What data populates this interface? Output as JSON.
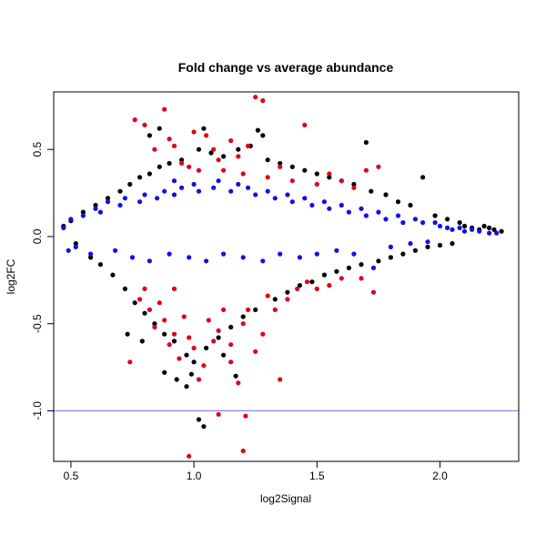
{
  "chart_data": {
    "type": "scatter",
    "title": "Fold change vs average abundance",
    "xlabel": "log2Signal",
    "ylabel": "log2FC",
    "xlim": [
      0.43,
      2.32
    ],
    "ylim": [
      -1.29,
      0.83
    ],
    "xticks": [
      0.5,
      1.0,
      1.5,
      2.0
    ],
    "xtick_labels": [
      "0.5",
      "1.0",
      "1.5",
      "2.0"
    ],
    "yticks": [
      -1.0,
      -0.5,
      0.0,
      0.5
    ],
    "ytick_labels": [
      "-1.0",
      "-0.5",
      "0.0",
      "0.5"
    ],
    "grid": false,
    "colors": {
      "black": "#000000",
      "red": "#e0001b",
      "blue": "#1010e8",
      "hline": "#8080e8"
    },
    "hline": {
      "y": -1.0
    },
    "series": [
      {
        "color": "black",
        "points": [
          [
            0.47,
            0.06
          ],
          [
            0.5,
            0.09
          ],
          [
            0.52,
            -0.04
          ],
          [
            0.55,
            0.14
          ],
          [
            0.58,
            -0.12
          ],
          [
            0.6,
            0.18
          ],
          [
            0.62,
            -0.16
          ],
          [
            0.65,
            0.22
          ],
          [
            0.67,
            -0.22
          ],
          [
            0.7,
            0.26
          ],
          [
            0.72,
            -0.3
          ],
          [
            0.74,
            0.3
          ],
          [
            0.76,
            -0.38
          ],
          [
            0.78,
            0.34
          ],
          [
            0.8,
            -0.44
          ],
          [
            0.82,
            0.36
          ],
          [
            0.84,
            -0.5
          ],
          [
            0.86,
            0.4
          ],
          [
            0.88,
            -0.56
          ],
          [
            0.9,
            0.42
          ],
          [
            0.92,
            -0.6
          ],
          [
            0.95,
            0.44
          ],
          [
            0.97,
            -0.68
          ],
          [
            0.99,
            -0.79
          ],
          [
            1.0,
            -0.72
          ],
          [
            1.02,
            0.5
          ],
          [
            1.04,
            0.62
          ],
          [
            1.05,
            -0.64
          ],
          [
            1.07,
            0.48
          ],
          [
            1.1,
            -0.58
          ],
          [
            1.12,
            0.46
          ],
          [
            1.15,
            -0.52
          ],
          [
            1.18,
            0.5
          ],
          [
            1.2,
            -0.46
          ],
          [
            1.23,
            0.52
          ],
          [
            1.25,
            -0.42
          ],
          [
            1.28,
            0.58
          ],
          [
            1.3,
            0.44
          ],
          [
            1.33,
            -0.36
          ],
          [
            1.35,
            0.42
          ],
          [
            1.38,
            -0.32
          ],
          [
            1.4,
            0.4
          ],
          [
            1.43,
            -0.28
          ],
          [
            1.45,
            0.38
          ],
          [
            1.48,
            -0.26
          ],
          [
            1.5,
            0.36
          ],
          [
            1.53,
            -0.22
          ],
          [
            1.55,
            0.34
          ],
          [
            1.58,
            -0.2
          ],
          [
            1.6,
            0.32
          ],
          [
            1.63,
            -0.18
          ],
          [
            1.65,
            0.3
          ],
          [
            1.68,
            -0.16
          ],
          [
            1.7,
            0.54
          ],
          [
            1.72,
            0.26
          ],
          [
            1.75,
            -0.14
          ],
          [
            1.78,
            0.24
          ],
          [
            1.8,
            -0.12
          ],
          [
            1.83,
            0.2
          ],
          [
            1.85,
            -0.1
          ],
          [
            1.88,
            0.18
          ],
          [
            1.9,
            -0.08
          ],
          [
            1.93,
            0.34
          ],
          [
            1.95,
            -0.06
          ],
          [
            1.98,
            0.12
          ],
          [
            2.0,
            -0.05
          ],
          [
            2.03,
            0.1
          ],
          [
            2.05,
            -0.04
          ],
          [
            2.08,
            0.08
          ],
          [
            2.1,
            0.06
          ],
          [
            2.13,
            0.05
          ],
          [
            2.16,
            0.04
          ],
          [
            2.18,
            0.06
          ],
          [
            2.2,
            0.05
          ],
          [
            2.22,
            0.04
          ],
          [
            2.25,
            0.03
          ],
          [
            0.93,
            -0.82
          ],
          [
            0.97,
            -0.86
          ],
          [
            1.02,
            -1.05
          ],
          [
            1.04,
            -1.09
          ],
          [
            0.82,
            0.58
          ],
          [
            0.86,
            0.62
          ],
          [
            1.26,
            0.61
          ],
          [
            1.17,
            -0.8
          ],
          [
            0.88,
            -0.78
          ],
          [
            0.79,
            -0.6
          ],
          [
            0.73,
            -0.56
          ],
          [
            1.12,
            -0.68
          ]
        ]
      },
      {
        "color": "red",
        "points": [
          [
            0.76,
            0.67
          ],
          [
            0.8,
            0.64
          ],
          [
            0.84,
            0.5
          ],
          [
            0.88,
            0.73
          ],
          [
            0.9,
            0.56
          ],
          [
            0.92,
            0.52
          ],
          [
            0.95,
            0.42
          ],
          [
            0.98,
            0.4
          ],
          [
            1.0,
            0.6
          ],
          [
            1.02,
            0.38
          ],
          [
            1.05,
            0.58
          ],
          [
            1.08,
            0.5
          ],
          [
            1.1,
            0.44
          ],
          [
            1.12,
            0.38
          ],
          [
            1.15,
            0.55
          ],
          [
            1.18,
            0.46
          ],
          [
            1.2,
            0.36
          ],
          [
            1.22,
            0.52
          ],
          [
            1.25,
            0.8
          ],
          [
            1.28,
            0.78
          ],
          [
            1.3,
            0.34
          ],
          [
            1.35,
            0.4
          ],
          [
            1.4,
            0.32
          ],
          [
            1.45,
            0.64
          ],
          [
            1.5,
            0.3
          ],
          [
            1.55,
            0.36
          ],
          [
            1.6,
            0.32
          ],
          [
            1.65,
            0.28
          ],
          [
            1.7,
            0.38
          ],
          [
            1.75,
            0.4
          ],
          [
            0.78,
            -0.36
          ],
          [
            0.8,
            -0.3
          ],
          [
            0.82,
            -0.42
          ],
          [
            0.84,
            -0.52
          ],
          [
            0.86,
            -0.38
          ],
          [
            0.88,
            -0.48
          ],
          [
            0.9,
            -0.62
          ],
          [
            0.92,
            -0.56
          ],
          [
            0.94,
            -0.7
          ],
          [
            0.96,
            -0.46
          ],
          [
            0.98,
            -0.58
          ],
          [
            1.0,
            -0.64
          ],
          [
            1.02,
            -0.82
          ],
          [
            1.04,
            -0.74
          ],
          [
            1.06,
            -0.48
          ],
          [
            1.08,
            -0.6
          ],
          [
            1.1,
            -0.54
          ],
          [
            1.12,
            -0.42
          ],
          [
            1.15,
            -0.62
          ],
          [
            1.18,
            -0.84
          ],
          [
            1.2,
            -0.5
          ],
          [
            1.22,
            -0.42
          ],
          [
            1.25,
            -0.66
          ],
          [
            1.28,
            -0.56
          ],
          [
            1.3,
            -0.34
          ],
          [
            1.33,
            -0.42
          ],
          [
            1.35,
            -0.82
          ],
          [
            1.38,
            -0.36
          ],
          [
            1.42,
            -0.3
          ],
          [
            1.46,
            -0.26
          ],
          [
            1.5,
            -0.3
          ],
          [
            1.55,
            -0.28
          ],
          [
            1.6,
            -0.24
          ],
          [
            1.68,
            -0.24
          ],
          [
            1.73,
            -0.32
          ],
          [
            0.74,
            -0.72
          ],
          [
            0.98,
            -1.26
          ],
          [
            1.2,
            -1.23
          ],
          [
            1.21,
            -1.03
          ],
          [
            1.1,
            -1.02
          ],
          [
            1.15,
            -0.72
          ],
          [
            0.92,
            -0.3
          ]
        ]
      },
      {
        "color": "blue",
        "points": [
          [
            0.47,
            0.05
          ],
          [
            0.5,
            0.1
          ],
          [
            0.52,
            -0.06
          ],
          [
            0.55,
            0.12
          ],
          [
            0.58,
            -0.1
          ],
          [
            0.6,
            0.16
          ],
          [
            0.62,
            0.14
          ],
          [
            0.65,
            0.2
          ],
          [
            0.68,
            -0.08
          ],
          [
            0.7,
            0.18
          ],
          [
            0.72,
            0.22
          ],
          [
            0.75,
            -0.12
          ],
          [
            0.78,
            0.2
          ],
          [
            0.8,
            0.24
          ],
          [
            0.82,
            -0.14
          ],
          [
            0.85,
            0.22
          ],
          [
            0.88,
            0.26
          ],
          [
            0.9,
            -0.1
          ],
          [
            0.92,
            0.24
          ],
          [
            0.95,
            0.28
          ],
          [
            0.98,
            -0.12
          ],
          [
            1.0,
            0.3
          ],
          [
            1.02,
            0.26
          ],
          [
            1.05,
            -0.14
          ],
          [
            1.08,
            0.28
          ],
          [
            1.1,
            0.32
          ],
          [
            1.12,
            -0.1
          ],
          [
            1.15,
            0.26
          ],
          [
            1.18,
            0.3
          ],
          [
            1.2,
            -0.12
          ],
          [
            1.22,
            0.28
          ],
          [
            1.25,
            0.24
          ],
          [
            1.28,
            -0.14
          ],
          [
            1.3,
            0.26
          ],
          [
            1.33,
            0.22
          ],
          [
            1.35,
            -0.1
          ],
          [
            1.38,
            0.24
          ],
          [
            1.4,
            0.2
          ],
          [
            1.43,
            -0.12
          ],
          [
            1.45,
            0.22
          ],
          [
            1.48,
            0.18
          ],
          [
            1.5,
            -0.1
          ],
          [
            1.53,
            0.2
          ],
          [
            1.55,
            0.16
          ],
          [
            1.58,
            -0.08
          ],
          [
            1.6,
            0.18
          ],
          [
            1.63,
            0.14
          ],
          [
            1.65,
            -0.1
          ],
          [
            1.68,
            0.16
          ],
          [
            1.7,
            0.12
          ],
          [
            1.73,
            -0.18
          ],
          [
            1.75,
            0.14
          ],
          [
            1.78,
            0.1
          ],
          [
            1.8,
            -0.06
          ],
          [
            1.83,
            0.12
          ],
          [
            1.85,
            0.08
          ],
          [
            1.88,
            -0.04
          ],
          [
            1.9,
            0.1
          ],
          [
            1.93,
            0.08
          ],
          [
            1.95,
            -0.03
          ],
          [
            1.98,
            0.08
          ],
          [
            2.0,
            0.06
          ],
          [
            2.03,
            0.05
          ],
          [
            2.05,
            0.04
          ],
          [
            2.08,
            0.05
          ],
          [
            2.1,
            0.03
          ],
          [
            2.13,
            0.04
          ],
          [
            2.16,
            0.03
          ],
          [
            2.2,
            0.02
          ],
          [
            2.23,
            0.02
          ],
          [
            0.49,
            -0.08
          ],
          [
            0.92,
            0.32
          ]
        ]
      }
    ]
  }
}
